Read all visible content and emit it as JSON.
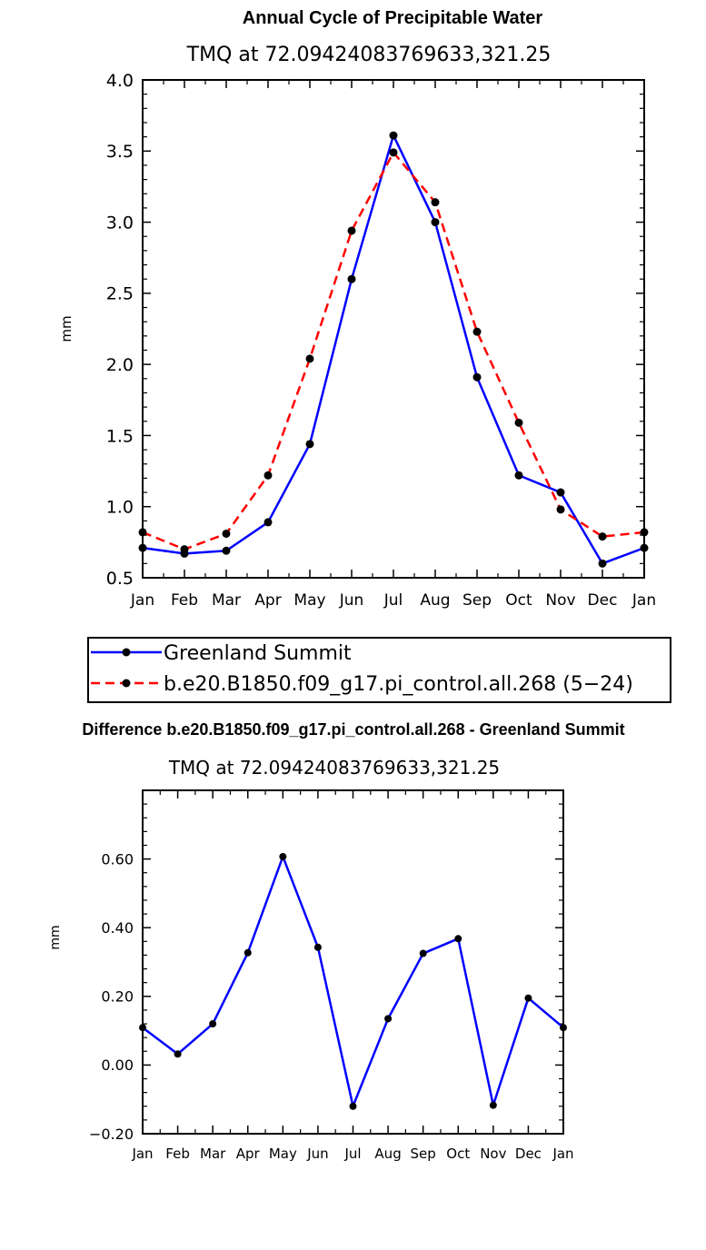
{
  "colors": {
    "obs": "#0000ff",
    "model": "#ff0000",
    "marker": "#000000"
  },
  "chart_data": [
    {
      "type": "line",
      "title": "Annual Cycle of Precipitable Water",
      "subtitle": "TMQ  at  72.09424083769633,321.25",
      "xlabel": "",
      "ylabel": "mm",
      "categories": [
        "Jan",
        "Feb",
        "Mar",
        "Apr",
        "May",
        "Jun",
        "Jul",
        "Aug",
        "Sep",
        "Oct",
        "Nov",
        "Dec",
        "Jan"
      ],
      "ylim": [
        0.5,
        4.0
      ],
      "yticks": [
        0.5,
        1.0,
        1.5,
        2.0,
        2.5,
        3.0,
        3.5,
        4.0
      ],
      "ytick_labels": [
        "0.5",
        "1.0",
        "1.5",
        "2.0",
        "2.5",
        "3.0",
        "3.5",
        "4.0"
      ],
      "series": [
        {
          "name": "Greenland Summit",
          "style": "solid",
          "color": "#0000ff",
          "values": [
            0.71,
            0.67,
            0.69,
            0.89,
            1.44,
            2.6,
            3.61,
            3.0,
            1.91,
            1.22,
            1.1,
            0.6,
            0.71
          ]
        },
        {
          "name": "b.e20.B1850.f09_g17.pi_control.all.268 (5−24)",
          "style": "dashed",
          "color": "#ff0000",
          "values": [
            0.82,
            0.7,
            0.81,
            1.22,
            2.04,
            2.94,
            3.49,
            3.14,
            2.23,
            1.59,
            0.98,
            0.79,
            0.82
          ]
        }
      ],
      "legend": "below"
    },
    {
      "type": "line",
      "title": "Difference b.e20.B1850.f09_g17.pi_control.all.268 - Greenland Summit",
      "subtitle": "TMQ  at  72.09424083769633,321.25",
      "xlabel": "",
      "ylabel": "mm",
      "categories": [
        "Jan",
        "Feb",
        "Mar",
        "Apr",
        "May",
        "Jun",
        "Jul",
        "Aug",
        "Sep",
        "Oct",
        "Nov",
        "Dec",
        "Jan"
      ],
      "ylim": [
        -0.2,
        0.8
      ],
      "yticks": [
        -0.2,
        0.0,
        0.2,
        0.4,
        0.6
      ],
      "ytick_labels": [
        "−0.20",
        "0.00",
        "0.20",
        "0.40",
        "0.60"
      ],
      "series": [
        {
          "color": "#0000ff",
          "values": [
            0.109,
            0.032,
            0.12,
            0.327,
            0.607,
            0.343,
            -0.12,
            0.135,
            0.325,
            0.368,
            -0.117,
            0.195,
            0.109
          ]
        }
      ]
    }
  ]
}
